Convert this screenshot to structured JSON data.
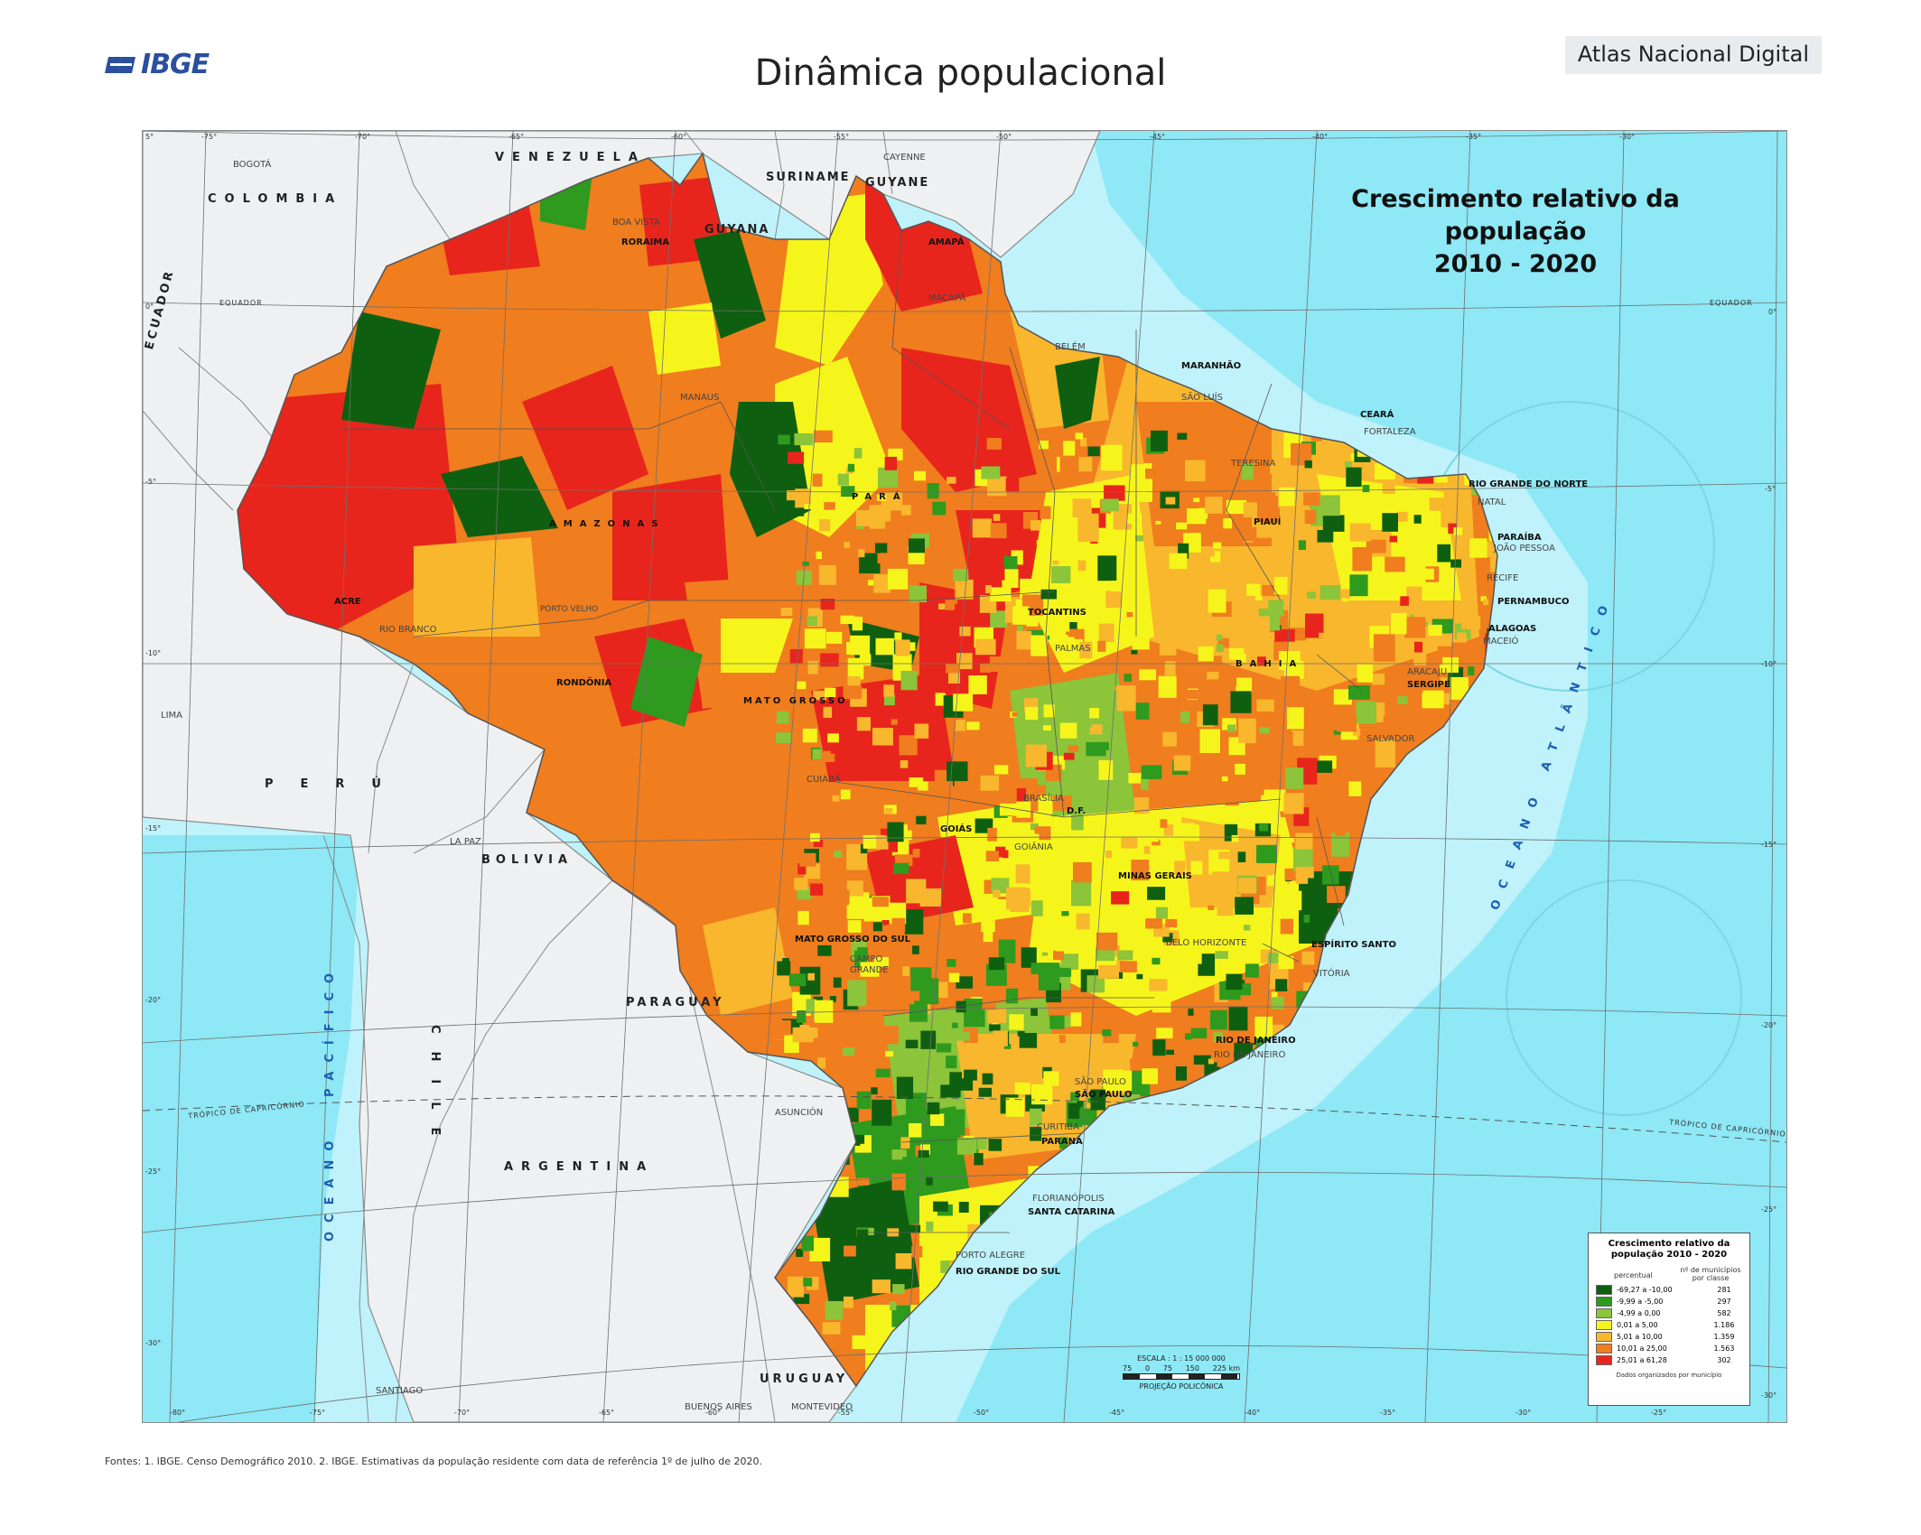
{
  "header": {
    "logo_text": "IBGE",
    "title": "Dinâmica populacional",
    "atlas_tab": "Atlas Nacional Digital"
  },
  "map": {
    "title_lines": [
      "Crescimento relativo da",
      "população",
      "2010 - 2020"
    ],
    "countries": {
      "venezuela": "VENEZUELA",
      "colombia": "COLOMBIA",
      "suriname": "SURINAME",
      "guyane": "GUYANE",
      "guyana": "GUYANA",
      "ecuador": "ECUADOR",
      "peru": "PERÚ",
      "bolivia": "BOLIVIA",
      "paraguay": "PARAGUAY",
      "argentina": "ARGENTINA",
      "chile": "CHILE",
      "uruguay": "URUGUAY"
    },
    "states": {
      "roraima": "RORAIMA",
      "amapa": "AMAPÁ",
      "maranhao": "MARANHÃO",
      "ceara": "CEARÁ",
      "rn": "RIO GRANDE DO NORTE",
      "paraiba": "PARAÍBA",
      "piaui": "PIAUÍ",
      "para": "PARÁ",
      "amazonas": "AMAZONAS",
      "acre": "ACRE",
      "pernambuco": "PERNAMBUCO",
      "alagoas": "ALAGOAS",
      "sergipe": "SERGIPE",
      "tocantins": "TOCANTINS",
      "rondonia": "RONDÔNIA",
      "mato_grosso": "MATO GROSSO",
      "bahia": "BAHIA",
      "goias": "GOIÁS",
      "df": "D.F.",
      "minas": "MINAS GERAIS",
      "ms": "MATO GROSSO DO SUL",
      "es": "ESPÍRITO SANTO",
      "rj": "RIO DE JANEIRO",
      "sp": "SÃO PAULO",
      "parana": "PARANÁ",
      "sc": "SANTA CATARINA",
      "rs": "RIO GRANDE DO SUL"
    },
    "cities": {
      "bogota": "BOGOTÁ",
      "cayenne": "CAYENNE",
      "boa_vista": "BOA VISTA",
      "macapa": "MACAPÁ",
      "belem": "BELÉM",
      "sao_luis": "SÃO LUÍS",
      "fortaleza": "FORTALEZA",
      "teresina": "TERESINA",
      "natal": "NATAL",
      "joao_pessoa": "JOÃO PESSOA",
      "recife": "RECIFE",
      "maceio": "MACEIÓ",
      "aracaju": "ARACAJU",
      "salvador": "SALVADOR",
      "manaus": "MANAUS",
      "porto_velho": "PORTO VELHO",
      "rio_branco": "RIO BRANCO",
      "palmas": "PALMAS",
      "cuiaba": "CUIABÁ",
      "brasilia": "BRASÍLIA",
      "goiania": "GOIÂNIA",
      "belo_horizonte": "BELO HORIZONTE",
      "vitoria": "VITÓRIA",
      "rio": "RIO DE JANEIRO",
      "sao_paulo": "SÃO PAULO",
      "curitiba": "CURITIBA",
      "florianopolis": "FLORIANÓPOLIS",
      "porto_alegre": "PORTO ALEGRE",
      "campo_grande": "CAMPO GRANDE",
      "lima": "LIMA",
      "la_paz": "LA PAZ",
      "asuncion": "ASUNCIÓN",
      "santiago": "SANTIAGO",
      "buenos_aires": "BUENOS   AIRES",
      "montevideo": "MONTEVIDEO"
    },
    "oceans": {
      "atlantic": "OCEANO ATLÂNTICO",
      "pacific_1": "PACÍFICO",
      "pacific_2": "OCEANO"
    },
    "lines": {
      "equator_left": "EQUADOR",
      "equator_right": "EQUADOR",
      "tropic_left": "TRÓPICO DE CAPRICÓRNIO",
      "tropic_right": "TRÓPICO DE CAPRICÓRNIO"
    },
    "coords": {
      "lon_top": [
        "-75°",
        "-70°",
        "-65°",
        "-60°",
        "-55°",
        "-50°",
        "-45°",
        "-40°",
        "-35°",
        "-30°"
      ],
      "lon_bottom": [
        "-80°",
        "-75°",
        "-70°",
        "-65°",
        "-60°",
        "-55°",
        "-50°",
        "-45°",
        "-40°",
        "-35°",
        "-30°",
        "-25°"
      ],
      "lat_left": [
        "5°",
        "0°",
        "-5°",
        "-10°",
        "-15°",
        "-20°",
        "-25°",
        "-30°"
      ],
      "lat_right": [
        "0°",
        "-5°",
        "-10°",
        "-15°",
        "-20°",
        "-25°",
        "-30°"
      ]
    },
    "colors": {
      "ocean": "#8ee8f5",
      "ocean_deep": "#bff2fa",
      "neighbor_land": "#eef0f2",
      "border": "#7d7d7d"
    }
  },
  "legend": {
    "title": "Crescimento relativo da população 2010 - 2020",
    "col_percent": "percentual",
    "col_count": "nº de municípios por classe",
    "classes": [
      {
        "range": "-69,27 a -10,00",
        "count": "281",
        "color": "#0f5f10"
      },
      {
        "range": "-9,99 a -5,00",
        "count": "297",
        "color": "#2e9a1e"
      },
      {
        "range": "-4,99 a 0,00",
        "count": "582",
        "color": "#8cc43a"
      },
      {
        "range": "0,01 a 5,00",
        "count": "1.186",
        "color": "#f6f51b"
      },
      {
        "range": "5,01 a 10,00",
        "count": "1.359",
        "color": "#f8b72d"
      },
      {
        "range": "10,01 a 25,00",
        "count": "1.563",
        "color": "#f07d1e"
      },
      {
        "range": "25,01 a 61,28",
        "count": "302",
        "color": "#e8251c"
      }
    ],
    "note": "Dados organizados por município"
  },
  "scale": {
    "title": "ESCALA : 1 : 15 000 000",
    "ticks": [
      "75",
      "0",
      "75",
      "150",
      "225 km"
    ],
    "projection": "PROJEÇÃO POLICÔNICA"
  },
  "footer": {
    "source": "Fontes: 1. IBGE. Censo Demográfico 2010. 2. IBGE. Estimativas da população residente com data de referência 1º de julho de 2020."
  }
}
